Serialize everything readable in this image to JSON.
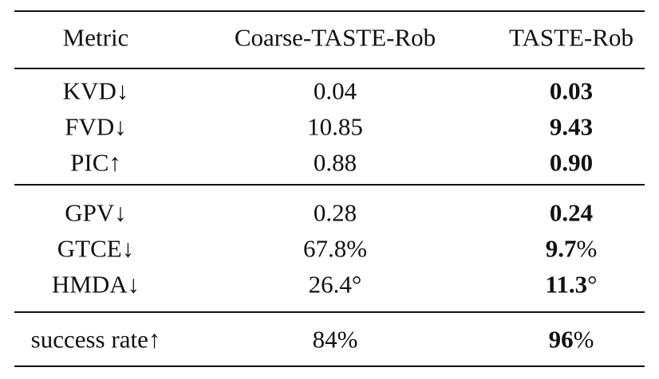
{
  "table": {
    "header": [
      "Metric",
      "Coarse-TASTE-Rob",
      "TASTE-Rob"
    ],
    "groups": [
      [
        {
          "metric": "KVD↓",
          "coarse": "0.04",
          "taste": [
            "0.03"
          ]
        },
        {
          "metric": "FVD↓",
          "coarse": "10.85",
          "taste": [
            "9.43"
          ]
        },
        {
          "metric": "PIC↑",
          "coarse": "0.88",
          "taste": [
            "0.90"
          ]
        }
      ],
      [
        {
          "metric": "GPV↓",
          "coarse": "0.28",
          "taste": [
            "0.24"
          ]
        },
        {
          "metric": "GTCE↓",
          "coarse": "67.8%",
          "taste": [
            "9.7",
            "%"
          ]
        },
        {
          "metric": "HMDA↓",
          "coarse": "26.4°",
          "taste": [
            "11.3",
            "°"
          ]
        }
      ],
      [
        {
          "metric": "success rate↑",
          "coarse": "84%",
          "taste": [
            "96",
            "%"
          ]
        }
      ]
    ]
  }
}
